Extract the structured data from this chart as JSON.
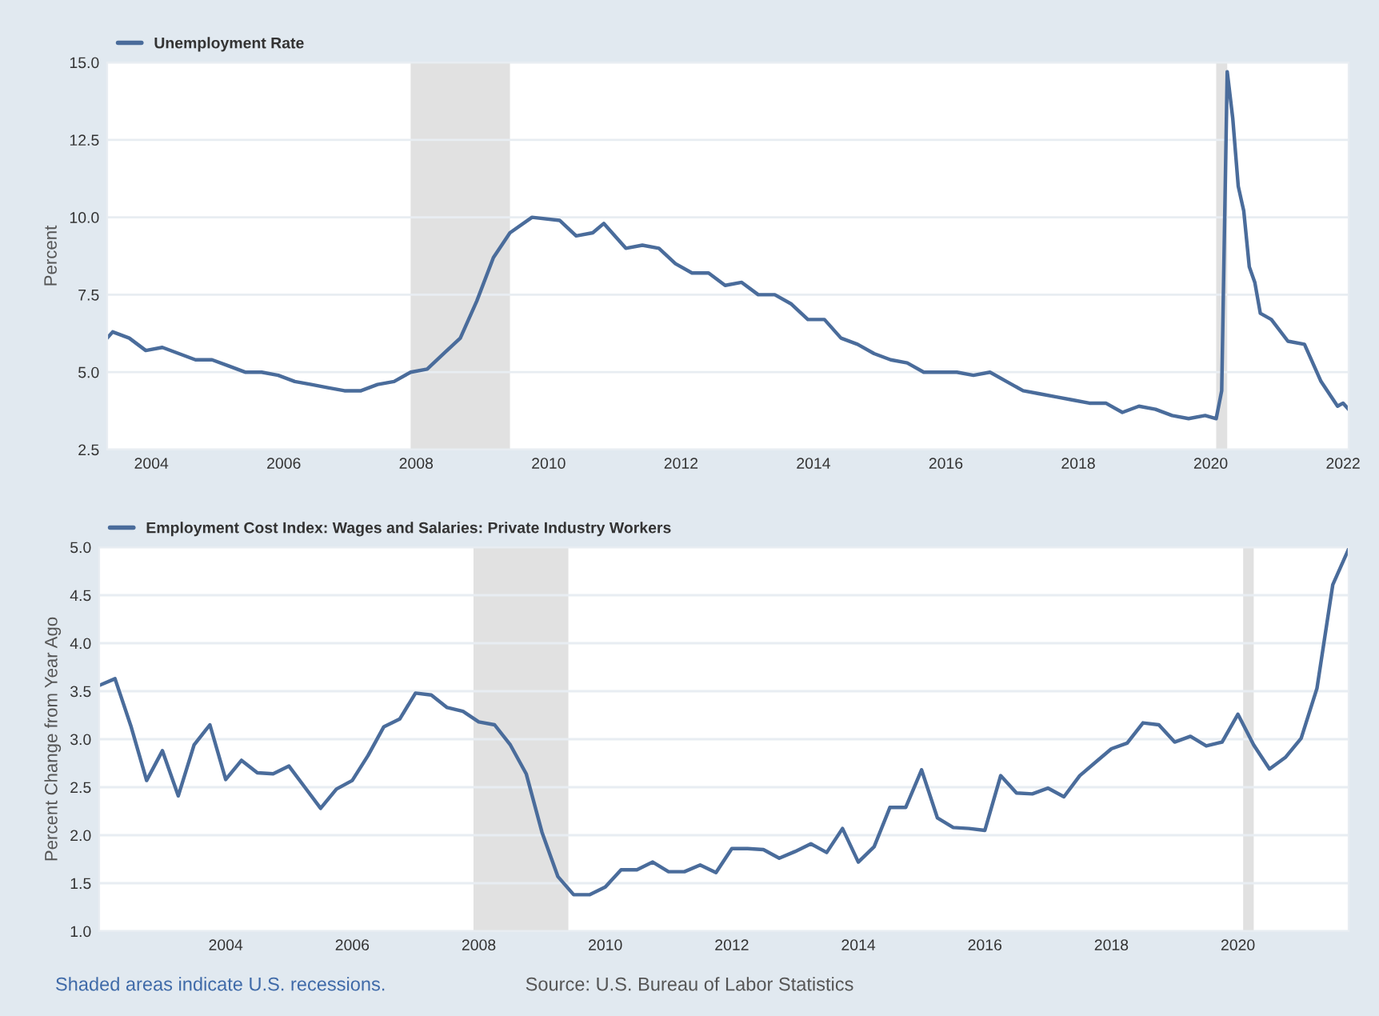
{
  "chart_data": [
    {
      "type": "line",
      "ylabel": "Percent",
      "grid": "y",
      "legend": "top left",
      "xlim": [
        "2003-05",
        "2022-02"
      ],
      "xticks": [
        "2004",
        "2006",
        "2008",
        "2010",
        "2012",
        "2014",
        "2016",
        "2018",
        "2020",
        "2022"
      ],
      "ylim": [
        2.5,
        15.0
      ],
      "yticks": [
        {
          "value": 2.5,
          "label": "2.5"
        },
        {
          "value": 5.0,
          "label": "5.0"
        },
        {
          "value": 7.5,
          "label": "7.5"
        },
        {
          "value": 10.0,
          "label": "10.0"
        },
        {
          "value": 12.5,
          "label": "12.5"
        },
        {
          "value": 15.0,
          "label": "15.0"
        }
      ],
      "bands": [
        {
          "axis": "x",
          "from": "2007-12",
          "to": "2009-06",
          "color": "#e1e1e1"
        },
        {
          "axis": "x",
          "from": "2020-02",
          "to": "2020-04",
          "color": "#e1e1e1"
        }
      ],
      "series": [
        {
          "name": "Unemployment Rate",
          "color": "#4a6c9b",
          "x": [
            "2003-05",
            "2003-06",
            "2003-09",
            "2003-12",
            "2004-03",
            "2004-06",
            "2004-09",
            "2004-12",
            "2005-03",
            "2005-06",
            "2005-09",
            "2005-12",
            "2006-03",
            "2006-06",
            "2006-09",
            "2006-12",
            "2007-03",
            "2007-06",
            "2007-09",
            "2007-12",
            "2008-03",
            "2008-06",
            "2008-09",
            "2008-12",
            "2009-03",
            "2009-06",
            "2009-10",
            "2010-03",
            "2010-06",
            "2010-09",
            "2010-11",
            "2011-03",
            "2011-06",
            "2011-09",
            "2011-12",
            "2012-03",
            "2012-06",
            "2012-09",
            "2012-12",
            "2013-03",
            "2013-06",
            "2013-09",
            "2013-12",
            "2014-03",
            "2014-06",
            "2014-09",
            "2014-12",
            "2015-03",
            "2015-06",
            "2015-09",
            "2015-12",
            "2016-03",
            "2016-06",
            "2016-09",
            "2016-12",
            "2017-03",
            "2017-06",
            "2017-09",
            "2017-12",
            "2018-03",
            "2018-06",
            "2018-09",
            "2018-12",
            "2019-03",
            "2019-06",
            "2019-09",
            "2019-12",
            "2020-02",
            "2020-03",
            "2020-04",
            "2020-05",
            "2020-06",
            "2020-07",
            "2020-08",
            "2020-09",
            "2020-10",
            "2020-12",
            "2021-03",
            "2021-06",
            "2021-09",
            "2021-12",
            "2022-01",
            "2022-02"
          ],
          "values": [
            6.1,
            6.3,
            6.1,
            5.7,
            5.8,
            5.6,
            5.4,
            5.4,
            5.2,
            5.0,
            5.0,
            4.9,
            4.7,
            4.6,
            4.5,
            4.4,
            4.4,
            4.6,
            4.7,
            5.0,
            5.1,
            5.6,
            6.1,
            7.3,
            8.7,
            9.5,
            10.0,
            9.9,
            9.4,
            9.5,
            9.8,
            9.0,
            9.1,
            9.0,
            8.5,
            8.2,
            8.2,
            7.8,
            7.9,
            7.5,
            7.5,
            7.2,
            6.7,
            6.7,
            6.1,
            5.9,
            5.6,
            5.4,
            5.3,
            5.0,
            5.0,
            5.0,
            4.9,
            5.0,
            4.7,
            4.4,
            4.3,
            4.2,
            4.1,
            4.0,
            4.0,
            3.7,
            3.9,
            3.8,
            3.6,
            3.5,
            3.6,
            3.5,
            4.4,
            14.7,
            13.2,
            11.0,
            10.2,
            8.4,
            7.9,
            6.9,
            6.7,
            6.0,
            5.9,
            4.7,
            3.9,
            4.0,
            3.8
          ]
        }
      ]
    },
    {
      "type": "line",
      "ylabel": "Percent Change from Year Ago",
      "grid": "y",
      "legend": "top left",
      "xlim": [
        "2002-01",
        "2021-10"
      ],
      "xticks": [
        "2004",
        "2006",
        "2008",
        "2010",
        "2012",
        "2014",
        "2016",
        "2018",
        "2020"
      ],
      "ylim": [
        1.0,
        5.0
      ],
      "yticks": [
        {
          "value": 1.0,
          "label": "1.0"
        },
        {
          "value": 1.5,
          "label": "1.5"
        },
        {
          "value": 2.0,
          "label": "2.0"
        },
        {
          "value": 2.5,
          "label": "2.5"
        },
        {
          "value": 3.0,
          "label": "3.0"
        },
        {
          "value": 3.5,
          "label": "3.5"
        },
        {
          "value": 4.0,
          "label": "4.0"
        },
        {
          "value": 4.5,
          "label": "4.5"
        },
        {
          "value": 5.0,
          "label": "5.0"
        }
      ],
      "bands": [
        {
          "axis": "x",
          "from": "2007-12",
          "to": "2009-06",
          "color": "#e1e1e1"
        },
        {
          "axis": "x",
          "from": "2020-02",
          "to": "2020-04",
          "color": "#e1e1e1"
        }
      ],
      "annotations": [
        "Shaded areas indicate U.S. recessions.",
        "Source: U.S. Bureau of Labor Statistics"
      ],
      "series": [
        {
          "name": "Employment Cost Index: Wages and Salaries: Private Industry Workers",
          "color": "#4a6c9b",
          "x": [
            "2002-01",
            "2002-04",
            "2002-07",
            "2002-10",
            "2003-01",
            "2003-04",
            "2003-07",
            "2003-10",
            "2004-01",
            "2004-04",
            "2004-07",
            "2004-10",
            "2005-01",
            "2005-04",
            "2005-07",
            "2005-10",
            "2006-01",
            "2006-04",
            "2006-07",
            "2006-10",
            "2007-01",
            "2007-04",
            "2007-07",
            "2007-10",
            "2008-01",
            "2008-04",
            "2008-07",
            "2008-10",
            "2009-01",
            "2009-04",
            "2009-07",
            "2009-10",
            "2010-01",
            "2010-04",
            "2010-07",
            "2010-10",
            "2011-01",
            "2011-04",
            "2011-07",
            "2011-10",
            "2012-01",
            "2012-04",
            "2012-07",
            "2012-10",
            "2013-01",
            "2013-04",
            "2013-07",
            "2013-10",
            "2014-01",
            "2014-04",
            "2014-07",
            "2014-10",
            "2015-01",
            "2015-04",
            "2015-07",
            "2015-10",
            "2016-01",
            "2016-04",
            "2016-07",
            "2016-10",
            "2017-01",
            "2017-04",
            "2017-07",
            "2017-10",
            "2018-01",
            "2018-04",
            "2018-07",
            "2018-10",
            "2019-01",
            "2019-04",
            "2019-07",
            "2019-10",
            "2020-01",
            "2020-04",
            "2020-07",
            "2020-10",
            "2021-01",
            "2021-04",
            "2021-07",
            "2021-10"
          ],
          "values": [
            3.56,
            3.63,
            3.14,
            2.57,
            2.88,
            2.41,
            2.94,
            3.15,
            2.58,
            2.78,
            2.65,
            2.64,
            2.72,
            2.5,
            2.28,
            2.48,
            2.57,
            2.83,
            3.13,
            3.21,
            3.48,
            3.46,
            3.33,
            3.29,
            3.18,
            3.15,
            2.94,
            2.64,
            2.03,
            1.57,
            1.38,
            1.38,
            1.46,
            1.64,
            1.64,
            1.72,
            1.62,
            1.62,
            1.69,
            1.61,
            1.86,
            1.86,
            1.85,
            1.76,
            1.83,
            1.91,
            1.82,
            2.07,
            1.72,
            1.88,
            2.29,
            2.29,
            2.68,
            2.18,
            2.08,
            2.07,
            2.05,
            2.62,
            2.44,
            2.43,
            2.49,
            2.4,
            2.62,
            2.76,
            2.9,
            2.96,
            3.17,
            3.15,
            2.97,
            3.03,
            2.93,
            2.97,
            3.26,
            2.94,
            2.69,
            2.81,
            3.01,
            3.53,
            4.61,
            4.98
          ]
        }
      ]
    }
  ]
}
